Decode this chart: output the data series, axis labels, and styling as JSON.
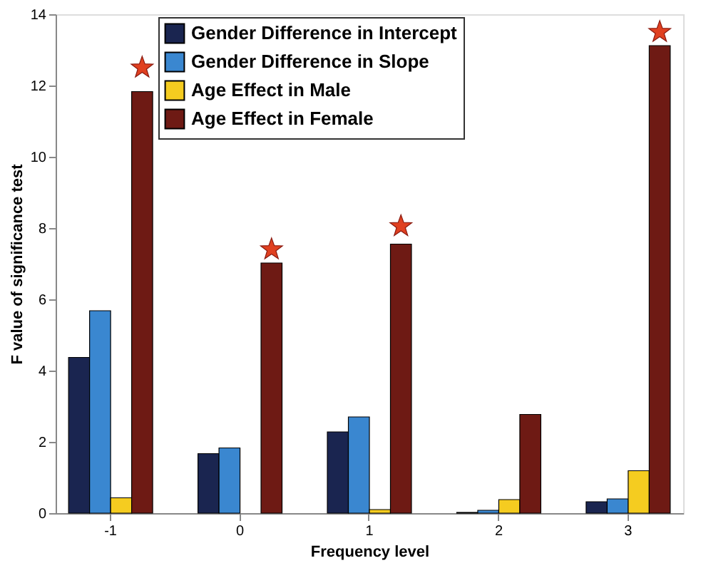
{
  "chart_data": {
    "type": "bar",
    "xlabel": "Frequency level",
    "ylabel": "F value of significance test",
    "categories": [
      "-1",
      "0",
      "1",
      "2",
      "3"
    ],
    "series": [
      {
        "name": "Gender Difference in Intercept",
        "color": "#1a2550",
        "values": [
          4.37,
          1.67,
          2.28,
          0.02,
          0.32
        ]
      },
      {
        "name": "Gender Difference in Slope",
        "color": "#3a87d0",
        "values": [
          5.68,
          1.83,
          2.7,
          0.08,
          0.4
        ]
      },
      {
        "name": "Age Effect in Male",
        "color": "#f5cc20",
        "values": [
          0.43,
          null,
          0.1,
          0.38,
          1.19
        ]
      },
      {
        "name": "Age Effect in Female",
        "color": "#6e1a14",
        "values": [
          11.83,
          7.02,
          7.55,
          2.77,
          13.12
        ]
      },
      {
        "type": "scatter",
        "marker": "star",
        "color": "#e04020",
        "values": [
          12.5,
          7.4,
          8.05,
          null,
          13.5
        ]
      }
    ],
    "ylim": [
      0,
      14
    ],
    "yticks": [
      0,
      2,
      4,
      6,
      8,
      10,
      12,
      14
    ],
    "grid": false,
    "legend": "top"
  }
}
